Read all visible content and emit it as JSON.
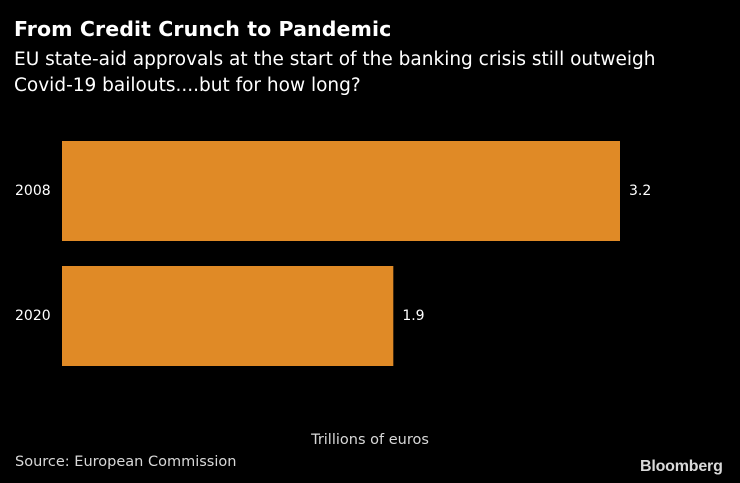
{
  "chart_data": {
    "type": "bar",
    "orientation": "horizontal",
    "title": "From Credit Crunch to Pandemic",
    "subtitle": "EU state-aid approvals at the start of the banking crisis still outweigh Covid-19 bailouts....but for how long?",
    "categories": [
      "2008",
      "2020"
    ],
    "values": [
      3.2,
      1.9
    ],
    "data_labels": [
      "3.2",
      "1.9"
    ],
    "xlabel": "Trillions of euros",
    "ylabel": "",
    "xlim": [
      0,
      3.2
    ],
    "bar_color": "#e08a26",
    "grid": false,
    "legend": "none"
  },
  "footer": {
    "source": "Source: European Commission",
    "brand": "Bloomberg"
  }
}
